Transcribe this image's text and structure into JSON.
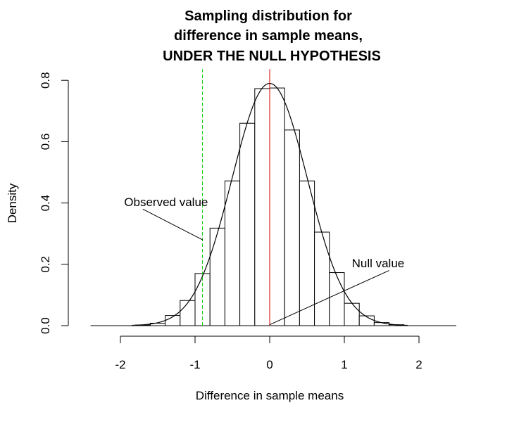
{
  "chart_data": {
    "type": "bar",
    "title_lines": [
      "Sampling distribution for",
      "difference in sample means,",
      "UNDER THE NULL HYPOTHESIS"
    ],
    "xlabel": "Difference in sample means",
    "ylabel": "Density",
    "xlim": [
      -2.5,
      2.5
    ],
    "ylim": [
      0,
      0.8
    ],
    "x_ticks": [
      -2,
      -1,
      0,
      1,
      2
    ],
    "x_tick_labels": [
      "-2",
      "-1",
      "0",
      "1",
      "2"
    ],
    "y_ticks": [
      0,
      0.2,
      0.4,
      0.6,
      0.8
    ],
    "y_tick_labels": [
      "0.0",
      "0.2",
      "0.4",
      "0.6",
      "0.8"
    ],
    "histogram": {
      "bin_width": 0.2,
      "bin_starts": [
        -2.0,
        -1.8,
        -1.6,
        -1.4,
        -1.2,
        -1.0,
        -0.8,
        -0.6,
        -0.4,
        -0.2,
        0.0,
        0.2,
        0.4,
        0.6,
        0.8,
        1.0,
        1.2,
        1.4,
        1.6,
        1.8
      ],
      "densities": [
        0.0,
        0.002,
        0.008,
        0.033,
        0.082,
        0.17,
        0.318,
        0.472,
        0.66,
        0.773,
        0.775,
        0.638,
        0.472,
        0.305,
        0.173,
        0.073,
        0.032,
        0.01,
        0.003,
        0.0
      ]
    },
    "density_curve": {
      "mean": 0,
      "sd": 0.505
    },
    "reference_lines": [
      {
        "x": -0.9,
        "color": "#00cc00",
        "style": "dashed"
      },
      {
        "x": 0,
        "color": "#cc0000",
        "style": "solid"
      }
    ],
    "annotations": [
      {
        "text": "Observed value",
        "text_x": -1.95,
        "text_y": 0.39,
        "arrow_from": [
          -1.7,
          0.38
        ],
        "arrow_to": [
          -0.9,
          0.28
        ]
      },
      {
        "text": "Null value",
        "text_x": 1.1,
        "text_y": 0.19,
        "arrow_from": [
          1.6,
          0.18
        ],
        "arrow_to": [
          0,
          0.003
        ]
      }
    ],
    "colors": {
      "bars_fill": "#ffffff",
      "bars_stroke": "#000000",
      "curve": "#000000",
      "null_line": "#cc0000",
      "observed_line": "#00cc00"
    }
  }
}
